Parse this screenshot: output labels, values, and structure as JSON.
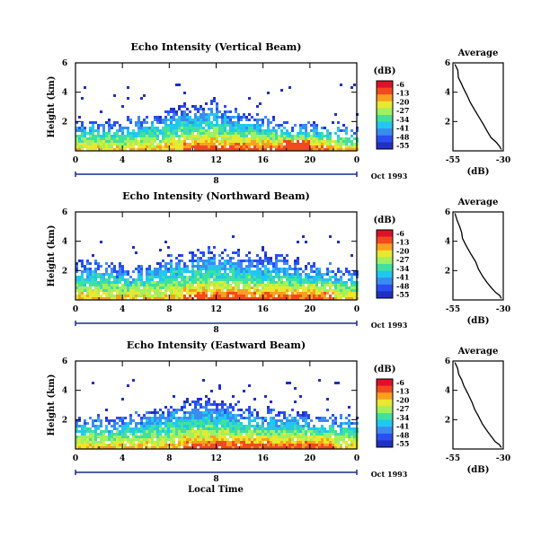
{
  "figure": {
    "xlabel_bottom": "Local Time",
    "day_label": "8",
    "date_label": "Oct 1993"
  },
  "colorbar": {
    "unit": "(dB)",
    "ticks": [
      "-6",
      "-13",
      "-20",
      "-27",
      "-34",
      "-41",
      "-48",
      "-55"
    ],
    "colors": [
      "#e0102a",
      "#f24a1e",
      "#f9a020",
      "#e8e830",
      "#a0f060",
      "#40e0a0",
      "#20c8f0",
      "#3a8cf0",
      "#2a4ef0",
      "#2030c0"
    ]
  },
  "chart_data": [
    {
      "type": "heatmap",
      "title": "Echo Intensity (Vertical Beam)",
      "xlabel": "",
      "ylabel": "Height (km)",
      "xlim": [
        0,
        24
      ],
      "ylim": [
        0,
        6
      ],
      "xticks": [
        "0",
        "4",
        "8",
        "12",
        "16",
        "20",
        "0"
      ],
      "yticks": [
        "2",
        "4",
        "6"
      ],
      "top_height_km": [
        2.0,
        2.1,
        2.1,
        2.0,
        2.2,
        2.3,
        2.4,
        2.6,
        3.0,
        3.2,
        3.3,
        3.4,
        3.0,
        2.8,
        2.6,
        2.5,
        2.3,
        2.1,
        2.0,
        2.0,
        1.9,
        1.8,
        1.8,
        1.7
      ]
    },
    {
      "type": "heatmap",
      "title": "Echo Intensity (Northward Beam)",
      "xlabel": "",
      "ylabel": "Height (km)",
      "xlim": [
        0,
        24
      ],
      "ylim": [
        0,
        6
      ],
      "xticks": [
        "0",
        "4",
        "8",
        "12",
        "16",
        "20",
        "0"
      ],
      "yticks": [
        "2",
        "4",
        "6"
      ],
      "top_height_km": [
        2.6,
        2.7,
        2.6,
        2.4,
        2.3,
        2.4,
        2.6,
        2.9,
        3.1,
        3.3,
        3.4,
        3.6,
        3.5,
        3.4,
        3.2,
        3.0,
        3.1,
        3.0,
        2.8,
        2.6,
        2.5,
        2.4,
        2.3,
        2.2
      ]
    },
    {
      "type": "heatmap",
      "title": "Echo Intensity (Eastward Beam)",
      "xlabel": "Local Time",
      "ylabel": "Height (km)",
      "xlim": [
        0,
        24
      ],
      "ylim": [
        0,
        6
      ],
      "xticks": [
        "0",
        "4",
        "8",
        "12",
        "16",
        "20",
        "0"
      ],
      "yticks": [
        "2",
        "4",
        "6"
      ],
      "top_height_km": [
        2.2,
        2.4,
        2.3,
        2.4,
        2.5,
        2.6,
        2.8,
        2.9,
        3.2,
        3.3,
        3.4,
        3.5,
        3.3,
        3.1,
        2.9,
        2.8,
        2.8,
        2.7,
        2.6,
        2.5,
        2.4,
        2.4,
        2.3,
        2.2
      ]
    },
    {
      "type": "line",
      "title": "Average",
      "xlabel": "(dB)",
      "ylabel": "",
      "xlim": [
        -55,
        -30
      ],
      "ylim": [
        0,
        6
      ],
      "xticks": [
        "-55",
        "-30"
      ],
      "yticks": [
        "2",
        "4",
        "6"
      ],
      "x": [
        -54,
        -53,
        -52,
        -51,
        -50,
        -48,
        -46,
        -44,
        -42,
        -40,
        -38,
        -36,
        -34,
        -32,
        -31
      ],
      "y": [
        5.9,
        5.5,
        5.0,
        4.6,
        4.3,
        3.8,
        3.3,
        2.8,
        2.3,
        1.8,
        1.3,
        0.9,
        0.6,
        0.3,
        0.1
      ]
    },
    {
      "type": "line",
      "title": "Average",
      "xlabel": "(dB)",
      "ylabel": "",
      "xlim": [
        -55,
        -30
      ],
      "ylim": [
        0,
        6
      ],
      "xticks": [
        "-55",
        "-30"
      ],
      "yticks": [
        "2",
        "4",
        "6"
      ],
      "x": [
        -54,
        -53,
        -52,
        -51,
        -50,
        -48,
        -46,
        -44,
        -42,
        -40,
        -38,
        -36,
        -34,
        -32,
        -31
      ],
      "y": [
        5.9,
        5.4,
        5.0,
        4.6,
        4.2,
        3.7,
        3.1,
        2.6,
        2.1,
        1.6,
        1.2,
        0.8,
        0.5,
        0.3,
        0.1
      ]
    },
    {
      "type": "line",
      "title": "Average",
      "xlabel": "(dB)",
      "ylabel": "",
      "xlim": [
        -55,
        -30
      ],
      "ylim": [
        0,
        6
      ],
      "xticks": [
        "-55",
        "-30"
      ],
      "yticks": [
        "2",
        "4",
        "6"
      ],
      "x": [
        -54,
        -53,
        -52,
        -51,
        -50,
        -48,
        -46,
        -44,
        -42,
        -40,
        -38,
        -36,
        -34,
        -32,
        -31
      ],
      "y": [
        5.9,
        5.5,
        5.1,
        4.7,
        4.3,
        3.8,
        3.2,
        2.7,
        2.2,
        1.7,
        1.2,
        0.8,
        0.5,
        0.3,
        0.1
      ]
    }
  ]
}
